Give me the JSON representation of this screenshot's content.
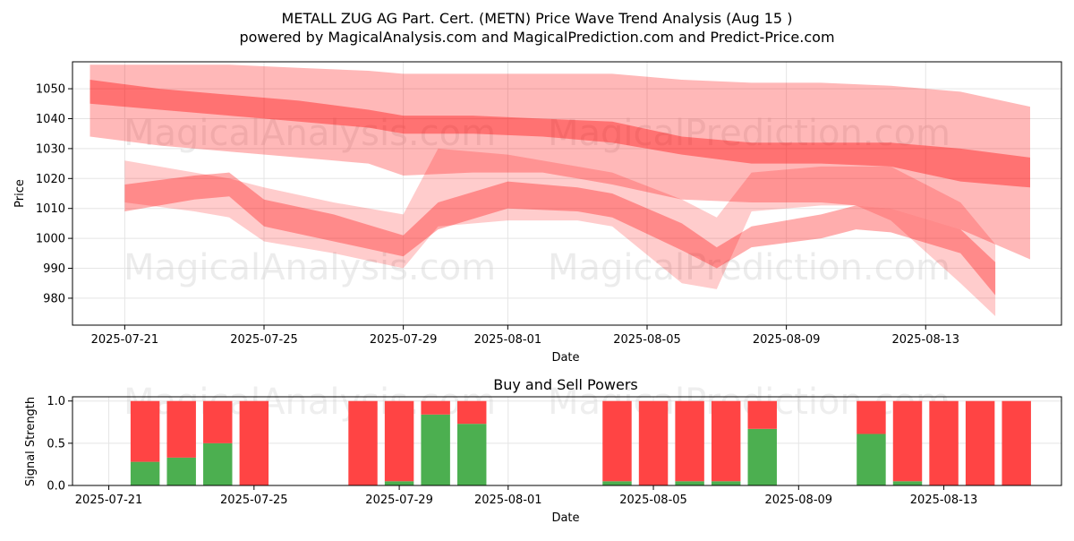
{
  "title_line1": "METALL ZUG AG Part. Cert. (METN) Price Wave Trend Analysis (Aug 15 )",
  "title_line2": "powered by MagicalAnalysis.com and MagicalPrediction.com and Predict-Price.com",
  "watermarks": [
    "MagicalAnalysis.com",
    "MagicalPrediction.com"
  ],
  "colors": {
    "band": "#ff0000",
    "buy": "#4caf50",
    "sell": "#ff4444",
    "grid": "#e5e5e5"
  },
  "chart_data": [
    {
      "type": "area",
      "title": "",
      "xlabel": "Date",
      "ylabel": "Price",
      "x_ticks": [
        "2025-07-21",
        "2025-07-25",
        "2025-07-29",
        "2025-08-01",
        "2025-08-05",
        "2025-08-09",
        "2025-08-13"
      ],
      "y_ticks": [
        980,
        990,
        1000,
        1010,
        1020,
        1030,
        1040,
        1050
      ],
      "ylim": [
        971,
        1059
      ],
      "xlim": [
        "2025-07-20",
        "2025-08-16"
      ],
      "grid": true,
      "series": [
        {
          "dates": [
            "2025-07-20",
            "2025-07-22",
            "2025-07-24",
            "2025-07-26",
            "2025-07-28",
            "2025-07-29",
            "2025-07-31",
            "2025-08-02",
            "2025-08-04",
            "2025-08-06",
            "2025-08-08",
            "2025-08-10",
            "2025-08-12",
            "2025-08-14",
            "2025-08-16"
          ],
          "upper": [
            1058,
            1058,
            1058,
            1057,
            1056,
            1055,
            1055,
            1055,
            1055,
            1053,
            1052,
            1052,
            1051,
            1049,
            1044
          ],
          "lower": [
            1034,
            1031,
            1029,
            1027,
            1025,
            1021,
            1022,
            1022,
            1018,
            1013,
            1012,
            1012,
            1010,
            1003,
            993
          ]
        },
        {
          "dates": [
            "2025-07-20",
            "2025-07-22",
            "2025-07-24",
            "2025-07-26",
            "2025-07-28",
            "2025-07-29",
            "2025-07-31",
            "2025-08-02",
            "2025-08-04",
            "2025-08-06",
            "2025-08-08",
            "2025-08-10",
            "2025-08-12",
            "2025-08-14",
            "2025-08-16"
          ],
          "upper": [
            1053,
            1050,
            1048,
            1046,
            1043,
            1041,
            1041,
            1040,
            1039,
            1034,
            1032,
            1032,
            1032,
            1030,
            1027
          ],
          "lower": [
            1045,
            1043,
            1041,
            1039,
            1037,
            1035,
            1035,
            1034,
            1032,
            1028,
            1025,
            1025,
            1024,
            1019,
            1017
          ]
        },
        {
          "dates": [
            "2025-07-21",
            "2025-07-23",
            "2025-07-24",
            "2025-07-25",
            "2025-07-27",
            "2025-07-29",
            "2025-07-30",
            "2025-08-01",
            "2025-08-03",
            "2025-08-04",
            "2025-08-06",
            "2025-08-07",
            "2025-08-08",
            "2025-08-10",
            "2025-08-11",
            "2025-08-12",
            "2025-08-14",
            "2025-08-15"
          ],
          "upper": [
            1018,
            1021,
            1022,
            1013,
            1008,
            1001,
            1012,
            1019,
            1017,
            1015,
            1005,
            997,
            1004,
            1008,
            1011,
            1010,
            1003,
            992
          ],
          "lower": [
            1009,
            1013,
            1014,
            1004,
            999,
            994,
            1003,
            1010,
            1009,
            1007,
            996,
            990,
            997,
            1000,
            1003,
            1002,
            995,
            981
          ]
        },
        {
          "dates": [
            "2025-07-21",
            "2025-07-23",
            "2025-07-24",
            "2025-07-25",
            "2025-07-27",
            "2025-07-29",
            "2025-07-30",
            "2025-08-01",
            "2025-08-03",
            "2025-08-04",
            "2025-08-06",
            "2025-08-07",
            "2025-08-08",
            "2025-08-10",
            "2025-08-11",
            "2025-08-12",
            "2025-08-14",
            "2025-08-15"
          ],
          "upper": [
            1026,
            1022,
            1020,
            1017,
            1012,
            1008,
            1030,
            1028,
            1024,
            1022,
            1013,
            1007,
            1022,
            1024,
            1024,
            1024,
            1012,
            998
          ],
          "lower": [
            1012,
            1009,
            1007,
            999,
            995,
            990,
            1004,
            1006,
            1006,
            1004,
            985,
            983,
            1009,
            1011,
            1011,
            1006,
            985,
            974
          ]
        }
      ]
    },
    {
      "type": "bar",
      "title": "Buy and Sell Powers",
      "xlabel": "Date",
      "ylabel": "Signal Strength",
      "x_ticks": [
        "2025-07-21",
        "2025-07-25",
        "2025-07-29",
        "2025-08-01",
        "2025-08-05",
        "2025-08-09",
        "2025-08-13"
      ],
      "y_ticks": [
        0.0,
        0.5,
        1.0
      ],
      "ylim": [
        0,
        1.05
      ],
      "grid": true,
      "series_names": [
        "buy",
        "sell"
      ],
      "dates": [
        "2025-07-22",
        "2025-07-23",
        "2025-07-24",
        "2025-07-25",
        "2025-07-28",
        "2025-07-29",
        "2025-07-30",
        "2025-07-31",
        "2025-08-04",
        "2025-08-05",
        "2025-08-06",
        "2025-08-07",
        "2025-08-08",
        "2025-08-11",
        "2025-08-12",
        "2025-08-13",
        "2025-08-14",
        "2025-08-15"
      ],
      "buy": [
        0.28,
        0.33,
        0.5,
        0.0,
        0.0,
        0.05,
        0.84,
        0.73,
        0.05,
        0.0,
        0.05,
        0.05,
        0.67,
        0.61,
        0.05,
        0.0,
        0.0,
        0.0
      ],
      "sell": [
        0.72,
        0.67,
        0.5,
        1.0,
        1.0,
        0.95,
        0.16,
        0.27,
        0.95,
        1.0,
        0.95,
        0.95,
        0.33,
        0.39,
        0.95,
        1.0,
        1.0,
        1.0
      ]
    }
  ]
}
